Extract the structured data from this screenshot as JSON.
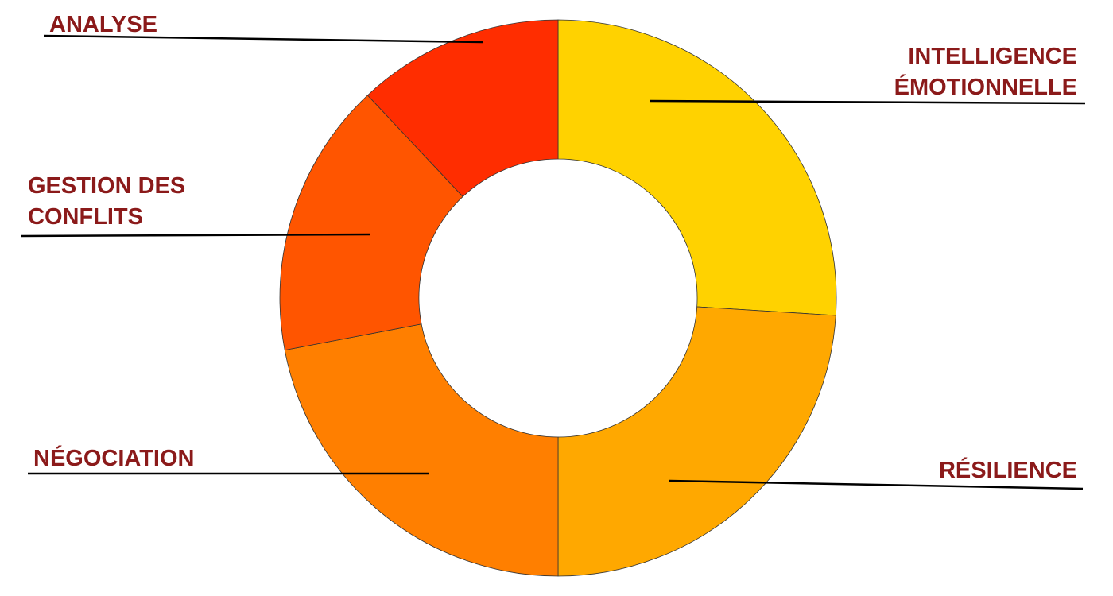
{
  "chart_data": {
    "type": "donut",
    "categories": [
      "INTELLIGENCE ÉMOTIONNELLE",
      "RÉSILIENCE",
      "NÉGOCIATION",
      "GESTION DES CONFLITS",
      "ANALYSE"
    ],
    "values": [
      26,
      24,
      22,
      16,
      12
    ],
    "colors": [
      "#ffd200",
      "#ffa800",
      "#ff7f00",
      "#ff5500",
      "#ff2d00"
    ]
  }
}
